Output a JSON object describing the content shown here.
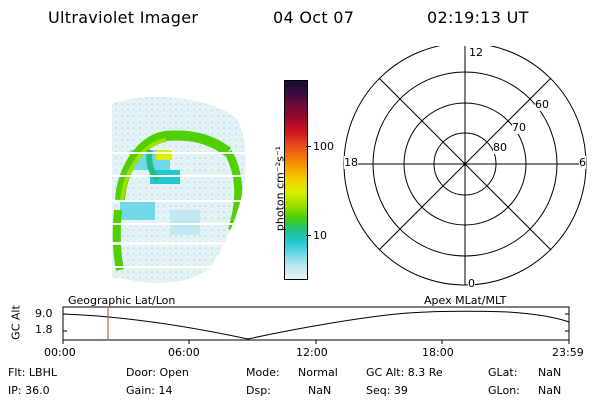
{
  "header": {
    "instrument": "Ultraviolet Imager",
    "date": "04 Oct 07",
    "time": "02:19:13 UT"
  },
  "colorbar": {
    "unit_label": "photon cm⁻²s⁻¹",
    "ticks": [
      "100",
      "10"
    ],
    "colors": [
      "#1a0a30",
      "#3a0a40",
      "#6a0a3a",
      "#9a0a2a",
      "#c81020",
      "#e04020",
      "#f07010",
      "#f5a000",
      "#f0d000",
      "#d8f000",
      "#a0e000",
      "#50d000",
      "#20c080",
      "#20c8d0",
      "#70d8e8",
      "#bfe8f0",
      "#e6f2f4"
    ]
  },
  "polar_plot": {
    "mlt_labels": {
      "top": "12",
      "left": "18",
      "right": "6",
      "bottom": "0"
    },
    "lat_labels": [
      "60",
      "70",
      "80"
    ]
  },
  "timeline": {
    "ylabel": "GC Alt",
    "y_ticks": [
      "9.0",
      "1.8"
    ],
    "left_label": "Geographic Lat/Lon",
    "right_label": "Apex MLat/MLT",
    "x_ticks": [
      "00:00",
      "06:00",
      "12:00",
      "18:00",
      "23:59"
    ],
    "marker_color": "#c83020"
  },
  "info": {
    "flt": "Flt: LBHL",
    "ip": "IP: 36.0",
    "door": "Door: Open",
    "gain": "Gain: 14",
    "mode_label": "Mode:",
    "mode_value": "Normal",
    "dsp_label": "Dsp:",
    "dsp_value": "NaN",
    "gcalt": "GC Alt: 8.3 Re",
    "seq": "Seq: 39",
    "glat_label": "GLat:",
    "glat_value": "NaN",
    "glon_label": "GLon:",
    "glon_value": "NaN"
  }
}
